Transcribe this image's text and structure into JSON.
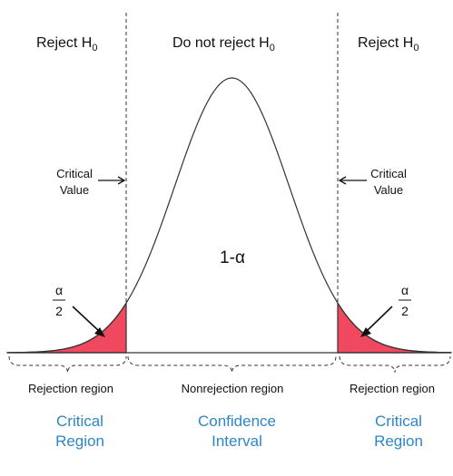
{
  "labels": {
    "reject_left": "Reject H",
    "reject_left_sub": "0",
    "do_not_reject": "Do not reject H",
    "do_not_reject_sub": "0",
    "reject_right": "Reject H",
    "reject_right_sub": "0",
    "critical_left_line1": "Critical",
    "critical_left_line2": "Value",
    "critical_right_line1": "Critical",
    "critical_right_line2": "Value",
    "center_label": "1-α",
    "alpha_left_num": "α",
    "alpha_left_den": "2",
    "alpha_right_num": "α",
    "alpha_right_den": "2",
    "rejection_region_left": "Rejection region",
    "nonrejection_region": "Nonrejection region",
    "rejection_region_right": "Rejection region"
  },
  "bottom_labels": {
    "left_line1": "Critical",
    "left_line2": "Region",
    "center_line1": "Confidence",
    "center_line2": "Interval",
    "right_line1": "Critical",
    "right_line2": "Region"
  },
  "colors": {
    "tail_fill": "#f0485f",
    "curve": "#333333",
    "blue_text": "#2e86c8"
  }
}
